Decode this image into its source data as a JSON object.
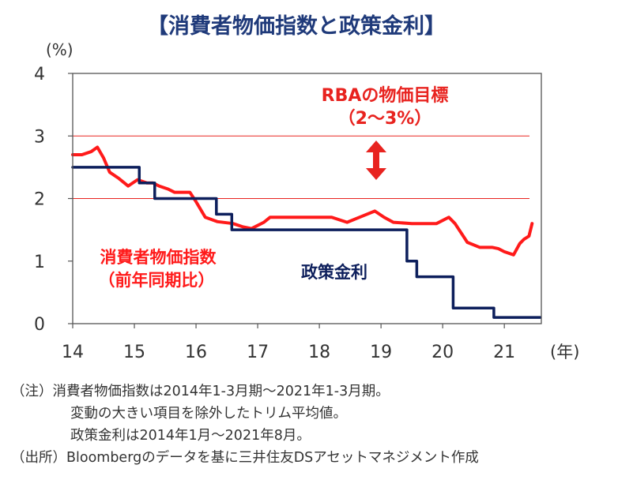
{
  "chart_data": {
    "type": "line",
    "title": "【消費者物価指数と政策金利】",
    "ylabel": "(%)",
    "xlabel": "(年)",
    "xlim": [
      2014,
      2021.6
    ],
    "ylim": [
      0,
      4
    ],
    "yticks": [
      "0",
      "1",
      "2",
      "3",
      "4"
    ],
    "xticks": [
      {
        "x": 2014,
        "label": "14"
      },
      {
        "x": 2015,
        "label": "15"
      },
      {
        "x": 2016,
        "label": "16"
      },
      {
        "x": 2017,
        "label": "17"
      },
      {
        "x": 2018,
        "label": "18"
      },
      {
        "x": 2019,
        "label": "19"
      },
      {
        "x": 2020,
        "label": "20"
      },
      {
        "x": 2021,
        "label": "21"
      }
    ],
    "target_band": {
      "low": 2,
      "high": 3,
      "label_line1": "RBAの物価目標",
      "label_line2": "（2～3%）",
      "color": "#e8231f"
    },
    "series": [
      {
        "name_line1": "消費者物価指数",
        "name_line2": "（前年同期比）",
        "color": "#ff1a1a",
        "step": false,
        "points": [
          [
            2014.0,
            2.7
          ],
          [
            2014.15,
            2.7
          ],
          [
            2014.3,
            2.75
          ],
          [
            2014.4,
            2.82
          ],
          [
            2014.5,
            2.65
          ],
          [
            2014.6,
            2.42
          ],
          [
            2014.75,
            2.32
          ],
          [
            2014.9,
            2.2
          ],
          [
            2015.05,
            2.3
          ],
          [
            2015.2,
            2.25
          ],
          [
            2015.3,
            2.25
          ],
          [
            2015.4,
            2.2
          ],
          [
            2015.55,
            2.15
          ],
          [
            2015.65,
            2.1
          ],
          [
            2015.9,
            2.1
          ],
          [
            2016.0,
            1.95
          ],
          [
            2016.15,
            1.7
          ],
          [
            2016.35,
            1.63
          ],
          [
            2016.6,
            1.6
          ],
          [
            2016.75,
            1.55
          ],
          [
            2016.9,
            1.52
          ],
          [
            2017.1,
            1.62
          ],
          [
            2017.2,
            1.7
          ],
          [
            2017.55,
            1.7
          ],
          [
            2017.9,
            1.7
          ],
          [
            2018.2,
            1.7
          ],
          [
            2018.45,
            1.62
          ],
          [
            2018.7,
            1.72
          ],
          [
            2018.9,
            1.8
          ],
          [
            2019.05,
            1.7
          ],
          [
            2019.2,
            1.62
          ],
          [
            2019.5,
            1.6
          ],
          [
            2019.9,
            1.6
          ],
          [
            2020.1,
            1.7
          ],
          [
            2020.2,
            1.6
          ],
          [
            2020.3,
            1.45
          ],
          [
            2020.4,
            1.3
          ],
          [
            2020.6,
            1.22
          ],
          [
            2020.8,
            1.22
          ],
          [
            2020.9,
            1.2
          ],
          [
            2021.0,
            1.15
          ],
          [
            2021.15,
            1.1
          ],
          [
            2021.25,
            1.28
          ],
          [
            2021.32,
            1.35
          ],
          [
            2021.4,
            1.4
          ],
          [
            2021.45,
            1.6
          ]
        ]
      },
      {
        "name": "政策金利",
        "color": "#0d1f5c",
        "step": true,
        "points": [
          [
            2014.0,
            2.5
          ],
          [
            2015.08,
            2.25
          ],
          [
            2015.33,
            2.0
          ],
          [
            2016.33,
            1.75
          ],
          [
            2016.58,
            1.5
          ],
          [
            2019.42,
            1.0
          ],
          [
            2019.58,
            0.75
          ],
          [
            2019.83,
            0.75
          ],
          [
            2020.17,
            0.25
          ],
          [
            2020.83,
            0.1
          ],
          [
            2021.58,
            0.1
          ]
        ]
      }
    ]
  },
  "notes": {
    "line1": "（注）消費者物価指数は2014年1-3月期～2021年1-3月期。",
    "line2": "変動の大きい項目を除外したトリム平均値。",
    "line3": "政策金利は2014年1月～2021年8月。",
    "line4": "（出所）Bloombergのデータを基に三井住友DSアセットマネジメント作成"
  }
}
